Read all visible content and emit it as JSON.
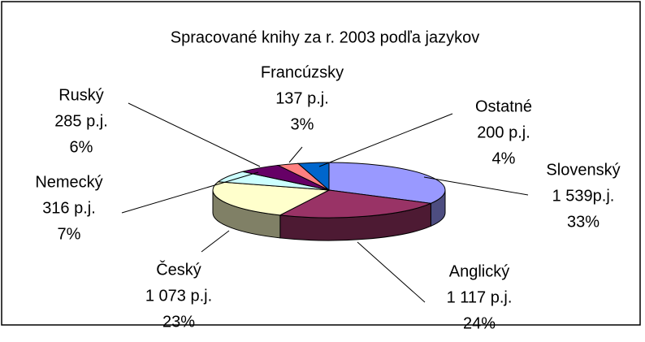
{
  "chart_data": {
    "type": "pie3d",
    "title": "Spracované knihy za r. 2003 podľa jazykov",
    "categories": [
      "Slovenský",
      "Anglický",
      "Český",
      "Nemecký",
      "Ruský",
      "Francúzsky",
      "Ostatné"
    ],
    "values": [
      1539,
      1117,
      1073,
      316,
      285,
      137,
      200
    ],
    "value_labels": [
      "1 539p.j.",
      "1 117 p.j.",
      "1 073 p.j.",
      "316 p.j.",
      "285 p.j.",
      "137 p.j.",
      "200 p.j."
    ],
    "percents": [
      33,
      24,
      23,
      7,
      6,
      3,
      4
    ],
    "percent_labels": [
      "33%",
      "24%",
      "23%",
      "7%",
      "6%",
      "3%",
      "4%"
    ],
    "colors": [
      "#9999ff",
      "#993366",
      "#ffffcc",
      "#ccffff",
      "#660066",
      "#ff8080",
      "#0066cc"
    ]
  }
}
